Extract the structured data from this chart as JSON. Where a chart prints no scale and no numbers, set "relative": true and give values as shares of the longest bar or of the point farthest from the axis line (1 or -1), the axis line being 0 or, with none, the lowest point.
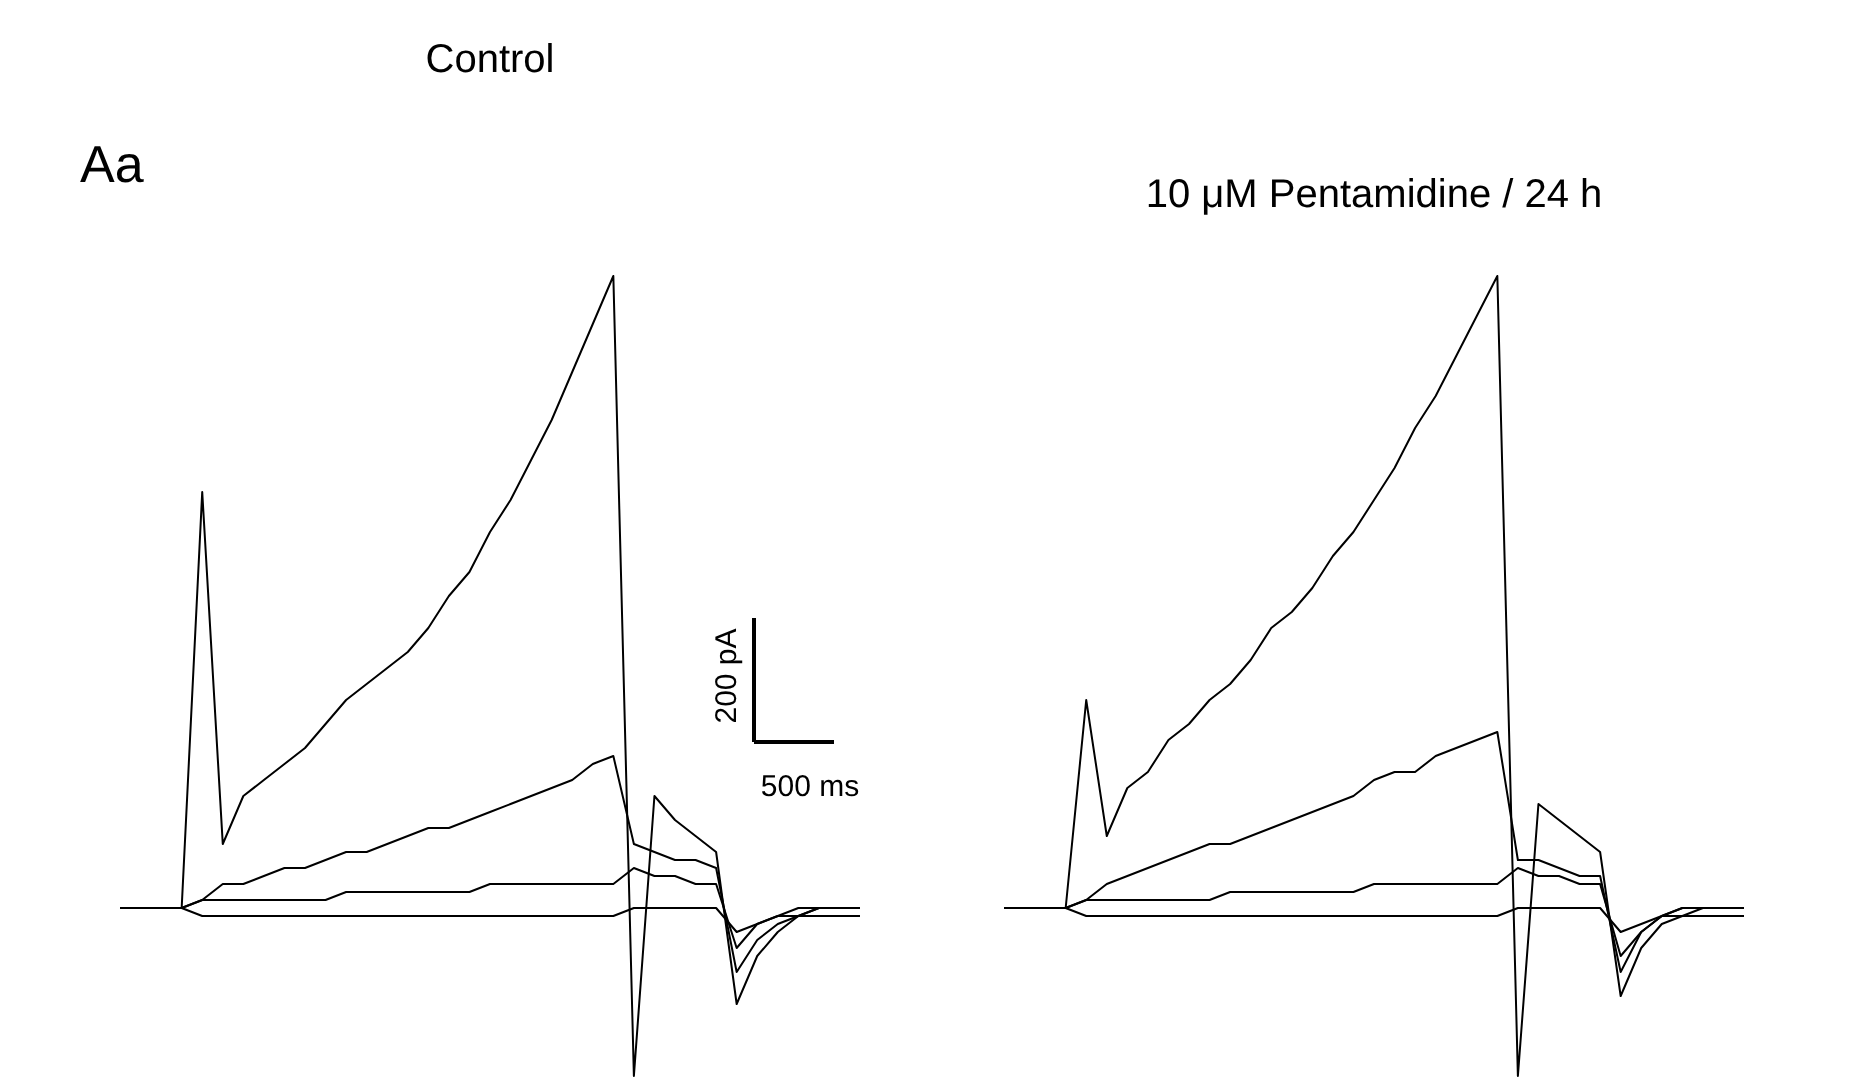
{
  "chart_data": [
    {
      "type": "line",
      "title": "Control",
      "relative": true,
      "categories": [
        null,
        null,
        null,
        null,
        null,
        null,
        null,
        null,
        null,
        null,
        null,
        null,
        null,
        null,
        null,
        null,
        null,
        null,
        null,
        null,
        null,
        null,
        null,
        null,
        null,
        null,
        null,
        null,
        null,
        null,
        null,
        null,
        null,
        null,
        null,
        null,
        null
      ],
      "series": [
        {
          "color": "#000000",
          "values": [
            0.21,
            0.21,
            0.21,
            0.21,
            0.73,
            0.29,
            0.35,
            0.37,
            0.39,
            0.41,
            0.44,
            0.47,
            0.49,
            0.51,
            0.53,
            0.56,
            0.6,
            0.63,
            0.68,
            0.72,
            0.77,
            0.82,
            0.88,
            0.94,
            1.0,
            0.0,
            0.35,
            0.32,
            0.3,
            0.28,
            0.09,
            0.15,
            0.18,
            0.2,
            0.21,
            0.21,
            0.21
          ]
        },
        {
          "color": "#000000",
          "values": [
            0.21,
            0.21,
            0.21,
            0.21,
            0.22,
            0.24,
            0.24,
            0.25,
            0.26,
            0.26,
            0.27,
            0.28,
            0.28,
            0.29,
            0.3,
            0.31,
            0.31,
            0.32,
            0.33,
            0.34,
            0.35,
            0.36,
            0.37,
            0.39,
            0.4,
            0.29,
            0.28,
            0.27,
            0.27,
            0.26,
            0.13,
            0.17,
            0.19,
            0.2,
            0.21,
            0.21,
            0.21
          ]
        },
        {
          "color": "#000000",
          "values": [
            0.21,
            0.21,
            0.21,
            0.21,
            0.22,
            0.22,
            0.22,
            0.22,
            0.22,
            0.22,
            0.22,
            0.23,
            0.23,
            0.23,
            0.23,
            0.23,
            0.23,
            0.23,
            0.24,
            0.24,
            0.24,
            0.24,
            0.24,
            0.24,
            0.24,
            0.26,
            0.25,
            0.25,
            0.24,
            0.24,
            0.16,
            0.19,
            0.2,
            0.21,
            0.21,
            0.21,
            0.21
          ]
        },
        {
          "color": "#000000",
          "values": [
            0.21,
            0.21,
            0.21,
            0.21,
            0.2,
            0.2,
            0.2,
            0.2,
            0.2,
            0.2,
            0.2,
            0.2,
            0.2,
            0.2,
            0.2,
            0.2,
            0.2,
            0.2,
            0.2,
            0.2,
            0.2,
            0.2,
            0.2,
            0.2,
            0.2,
            0.21,
            0.21,
            0.21,
            0.21,
            0.21,
            0.18,
            0.19,
            0.2,
            0.2,
            0.2,
            0.2,
            0.2
          ]
        }
      ],
      "annotations": [
        "Aa",
        "200 pA",
        "500 ms"
      ]
    },
    {
      "type": "line",
      "title": "10 μM Pentamidine / 24 h",
      "relative": true,
      "categories": [
        null,
        null,
        null,
        null,
        null,
        null,
        null,
        null,
        null,
        null,
        null,
        null,
        null,
        null,
        null,
        null,
        null,
        null,
        null,
        null,
        null,
        null,
        null,
        null,
        null,
        null,
        null,
        null,
        null,
        null,
        null,
        null,
        null,
        null,
        null,
        null,
        null
      ],
      "series": [
        {
          "color": "#000000",
          "values": [
            0.21,
            0.21,
            0.21,
            0.21,
            0.47,
            0.3,
            0.36,
            0.38,
            0.42,
            0.44,
            0.47,
            0.49,
            0.52,
            0.56,
            0.58,
            0.61,
            0.65,
            0.68,
            0.72,
            0.76,
            0.81,
            0.85,
            0.9,
            0.95,
            1.0,
            0.0,
            0.34,
            0.32,
            0.3,
            0.28,
            0.1,
            0.16,
            0.19,
            0.2,
            0.21,
            0.21,
            0.21
          ]
        },
        {
          "color": "#000000",
          "values": [
            0.21,
            0.21,
            0.21,
            0.21,
            0.22,
            0.24,
            0.25,
            0.26,
            0.27,
            0.28,
            0.29,
            0.29,
            0.3,
            0.31,
            0.32,
            0.33,
            0.34,
            0.35,
            0.37,
            0.38,
            0.38,
            0.4,
            0.41,
            0.42,
            0.43,
            0.27,
            0.27,
            0.26,
            0.25,
            0.25,
            0.13,
            0.18,
            0.2,
            0.21,
            0.21,
            0.21,
            0.21
          ]
        },
        {
          "color": "#000000",
          "values": [
            0.21,
            0.21,
            0.21,
            0.21,
            0.22,
            0.22,
            0.22,
            0.22,
            0.22,
            0.22,
            0.22,
            0.23,
            0.23,
            0.23,
            0.23,
            0.23,
            0.23,
            0.23,
            0.24,
            0.24,
            0.24,
            0.24,
            0.24,
            0.24,
            0.24,
            0.26,
            0.25,
            0.25,
            0.24,
            0.24,
            0.15,
            0.18,
            0.2,
            0.21,
            0.21,
            0.21,
            0.21
          ]
        },
        {
          "color": "#000000",
          "values": [
            0.21,
            0.21,
            0.21,
            0.21,
            0.2,
            0.2,
            0.2,
            0.2,
            0.2,
            0.2,
            0.2,
            0.2,
            0.2,
            0.2,
            0.2,
            0.2,
            0.2,
            0.2,
            0.2,
            0.2,
            0.2,
            0.2,
            0.2,
            0.2,
            0.2,
            0.21,
            0.21,
            0.21,
            0.21,
            0.21,
            0.18,
            0.19,
            0.2,
            0.2,
            0.2,
            0.2,
            0.2
          ]
        }
      ]
    }
  ]
}
